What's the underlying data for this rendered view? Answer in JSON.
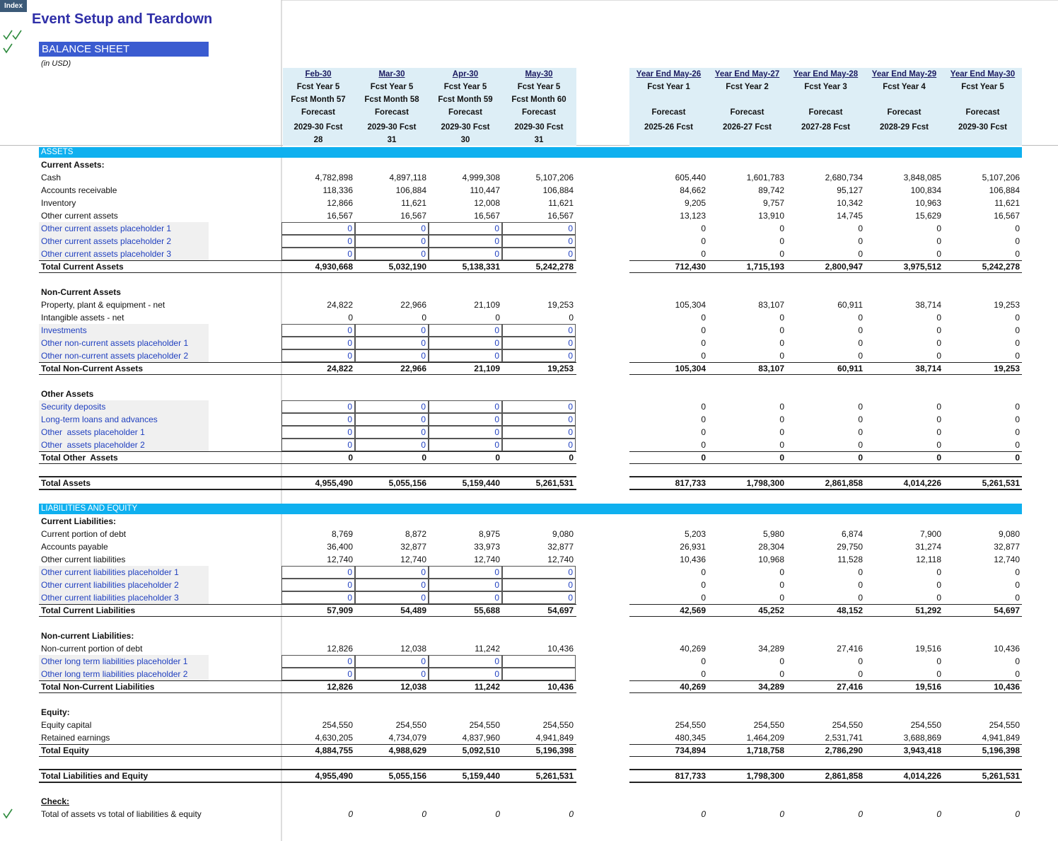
{
  "index_tab": "Index",
  "title": "Event Setup and Teardown",
  "sheet_title": "BALANCE SHEET",
  "units": "(in USD)",
  "columns": [
    {
      "period": "Feb-30",
      "year": "Fcst Year 5",
      "month": "Fcst Month 57",
      "type": "Forecast",
      "fy": "2029-30 Fcst",
      "days": "28"
    },
    {
      "period": "Mar-30",
      "year": "Fcst Year 5",
      "month": "Fcst Month 58",
      "type": "Forecast",
      "fy": "2029-30 Fcst",
      "days": "31"
    },
    {
      "period": "Apr-30",
      "year": "Fcst Year 5",
      "month": "Fcst Month 59",
      "type": "Forecast",
      "fy": "2029-30 Fcst",
      "days": "30"
    },
    {
      "period": "May-30",
      "year": "Fcst Year 5",
      "month": "Fcst Month 60",
      "type": "Forecast",
      "fy": "2029-30 Fcst",
      "days": "31"
    },
    {
      "period": "Year End May-26",
      "year": "Fcst Year 1",
      "type": "Forecast",
      "fy": "2025-26 Fcst"
    },
    {
      "period": "Year End May-27",
      "year": "Fcst Year 2",
      "type": "Forecast",
      "fy": "2026-27 Fcst"
    },
    {
      "period": "Year End May-28",
      "year": "Fcst Year 3",
      "type": "Forecast",
      "fy": "2027-28 Fcst"
    },
    {
      "period": "Year End May-29",
      "year": "Fcst Year 4",
      "type": "Forecast",
      "fy": "2028-29 Fcst"
    },
    {
      "period": "Year End May-30",
      "year": "Fcst Year 5",
      "type": "Forecast",
      "fy": "2029-30 Fcst"
    }
  ],
  "sections": [
    {
      "title": "ASSETS",
      "groups": [
        {
          "title": "Current Assets:",
          "rows": [
            {
              "label": "Cash",
              "values": [
                "4,782,898",
                "4,897,118",
                "4,999,308",
                "5,107,206",
                "605,440",
                "1,601,783",
                "2,680,734",
                "3,848,085",
                "5,107,206"
              ]
            },
            {
              "label": "Accounts receivable",
              "values": [
                "118,336",
                "106,884",
                "110,447",
                "106,884",
                "84,662",
                "89,742",
                "95,127",
                "100,834",
                "106,884"
              ]
            },
            {
              "label": "Inventory",
              "values": [
                "12,866",
                "11,621",
                "12,008",
                "11,621",
                "9,205",
                "9,757",
                "10,342",
                "10,963",
                "11,621"
              ]
            },
            {
              "label": "Other current assets",
              "values": [
                "16,567",
                "16,567",
                "16,567",
                "16,567",
                "13,123",
                "13,910",
                "14,745",
                "15,629",
                "16,567"
              ]
            },
            {
              "label": "Other current assets placeholder 1",
              "input": true,
              "values": [
                "0",
                "0",
                "0",
                "0",
                "0",
                "0",
                "0",
                "0",
                "0"
              ]
            },
            {
              "label": "Other current assets placeholder 2",
              "input": true,
              "values": [
                "0",
                "0",
                "0",
                "0",
                "0",
                "0",
                "0",
                "0",
                "0"
              ]
            },
            {
              "label": "Other current assets placeholder 3",
              "input": true,
              "values": [
                "0",
                "0",
                "0",
                "0",
                "0",
                "0",
                "0",
                "0",
                "0"
              ]
            }
          ],
          "total": {
            "label": "Total Current Assets",
            "values": [
              "4,930,668",
              "5,032,190",
              "5,138,331",
              "5,242,278",
              "712,430",
              "1,715,193",
              "2,800,947",
              "3,975,512",
              "5,242,278"
            ]
          }
        },
        {
          "title": "Non-Current Assets",
          "rows": [
            {
              "label": "Property, plant & equipment - net",
              "values": [
                "24,822",
                "22,966",
                "21,109",
                "19,253",
                "105,304",
                "83,107",
                "60,911",
                "38,714",
                "19,253"
              ]
            },
            {
              "label": "Intangible assets - net",
              "values": [
                "0",
                "0",
                "0",
                "0",
                "0",
                "0",
                "0",
                "0",
                "0"
              ]
            },
            {
              "label": "Investments",
              "input": true,
              "values": [
                "0",
                "0",
                "0",
                "0",
                "0",
                "0",
                "0",
                "0",
                "0"
              ]
            },
            {
              "label": "Other non-current assets placeholder 1",
              "input": true,
              "values": [
                "0",
                "0",
                "0",
                "0",
                "0",
                "0",
                "0",
                "0",
                "0"
              ]
            },
            {
              "label": "Other non-current assets placeholder 2",
              "input": true,
              "values": [
                "0",
                "0",
                "0",
                "0",
                "0",
                "0",
                "0",
                "0",
                "0"
              ]
            }
          ],
          "total": {
            "label": "Total Non-Current Assets",
            "values": [
              "24,822",
              "22,966",
              "21,109",
              "19,253",
              "105,304",
              "83,107",
              "60,911",
              "38,714",
              "19,253"
            ]
          }
        },
        {
          "title": "Other Assets",
          "rows": [
            {
              "label": "Security deposits",
              "input": true,
              "values": [
                "0",
                "0",
                "0",
                "0",
                "0",
                "0",
                "0",
                "0",
                "0"
              ]
            },
            {
              "label": "Long-term loans and advances",
              "input": true,
              "values": [
                "0",
                "0",
                "0",
                "0",
                "0",
                "0",
                "0",
                "0",
                "0"
              ]
            },
            {
              "label": "Other  assets placeholder 1",
              "input": true,
              "values": [
                "0",
                "0",
                "0",
                "0",
                "0",
                "0",
                "0",
                "0",
                "0"
              ]
            },
            {
              "label": "Other  assets placeholder 2",
              "input": true,
              "values": [
                "0",
                "0",
                "0",
                "0",
                "0",
                "0",
                "0",
                "0",
                "0"
              ]
            }
          ],
          "total": {
            "label": "Total Other  Assets",
            "values": [
              "0",
              "0",
              "0",
              "0",
              "0",
              "0",
              "0",
              "0",
              "0"
            ]
          }
        }
      ],
      "total": {
        "label": "Total Assets",
        "values": [
          "4,955,490",
          "5,055,156",
          "5,159,440",
          "5,261,531",
          "817,733",
          "1,798,300",
          "2,861,858",
          "4,014,226",
          "5,261,531"
        ]
      }
    },
    {
      "title": "LIABILITIES AND EQUITY",
      "groups": [
        {
          "title": "Current Liabilities:",
          "rows": [
            {
              "label": "Current portion of debt",
              "values": [
                "8,769",
                "8,872",
                "8,975",
                "9,080",
                "5,203",
                "5,980",
                "6,874",
                "7,900",
                "9,080"
              ]
            },
            {
              "label": "Accounts payable",
              "values": [
                "36,400",
                "32,877",
                "33,973",
                "32,877",
                "26,931",
                "28,304",
                "29,750",
                "31,274",
                "32,877"
              ]
            },
            {
              "label": "Other current liabilities",
              "values": [
                "12,740",
                "12,740",
                "12,740",
                "12,740",
                "10,436",
                "10,968",
                "11,528",
                "12,118",
                "12,740"
              ]
            },
            {
              "label": "Other current liabilities placeholder 1",
              "input": true,
              "values": [
                "0",
                "0",
                "0",
                "0",
                "0",
                "0",
                "0",
                "0",
                "0"
              ]
            },
            {
              "label": "Other current liabilities placeholder 2",
              "input": true,
              "values": [
                "0",
                "0",
                "0",
                "0",
                "0",
                "0",
                "0",
                "0",
                "0"
              ]
            },
            {
              "label": "Other current liabilities placeholder 3",
              "input": true,
              "values": [
                "0",
                "0",
                "0",
                "0",
                "0",
                "0",
                "0",
                "0",
                "0"
              ]
            }
          ],
          "total": {
            "label": "Total Current Liabilities",
            "values": [
              "57,909",
              "54,489",
              "55,688",
              "54,697",
              "42,569",
              "45,252",
              "48,152",
              "51,292",
              "54,697"
            ]
          }
        },
        {
          "title": "Non-current Liabilities:",
          "rows": [
            {
              "label": "Non-current portion of debt",
              "values": [
                "12,826",
                "12,038",
                "11,242",
                "10,436",
                "40,269",
                "34,289",
                "27,416",
                "19,516",
                "10,436"
              ]
            },
            {
              "label": "Other long term liabilities placeholder 1",
              "input": true,
              "values": [
                "0",
                "0",
                "0",
                null,
                "0",
                "0",
                "0",
                "0",
                "0"
              ]
            },
            {
              "label": "Other long term liabilities placeholder 2",
              "input": true,
              "values": [
                "0",
                "0",
                "0",
                null,
                "0",
                "0",
                "0",
                "0",
                "0"
              ]
            }
          ],
          "total": {
            "label": "Total Non-Current Liabilities",
            "values": [
              "12,826",
              "12,038",
              "11,242",
              "10,436",
              "40,269",
              "34,289",
              "27,416",
              "19,516",
              "10,436"
            ]
          }
        },
        {
          "title": "Equity:",
          "rows": [
            {
              "label": "Equity capital",
              "values": [
                "254,550",
                "254,550",
                "254,550",
                "254,550",
                "254,550",
                "254,550",
                "254,550",
                "254,550",
                "254,550"
              ]
            },
            {
              "label": "Retained earnings",
              "values": [
                "4,630,205",
                "4,734,079",
                "4,837,960",
                "4,941,849",
                "480,345",
                "1,464,209",
                "2,531,741",
                "3,688,869",
                "4,941,849"
              ]
            }
          ],
          "total": {
            "label": "Total Equity",
            "values": [
              "4,884,755",
              "4,988,629",
              "5,092,510",
              "5,196,398",
              "734,894",
              "1,718,758",
              "2,786,290",
              "3,943,418",
              "5,196,398"
            ]
          }
        }
      ],
      "total": {
        "label": "Total Liabilities and Equity",
        "values": [
          "4,955,490",
          "5,055,156",
          "5,159,440",
          "5,261,531",
          "817,733",
          "1,798,300",
          "2,861,858",
          "4,014,226",
          "5,261,531"
        ]
      }
    }
  ],
  "check": {
    "title": "Check:",
    "label": "Total of assets vs total of liabilities & equity",
    "values": [
      "0",
      "0",
      "0",
      "0",
      "0",
      "0",
      "0",
      "0",
      "0"
    ]
  }
}
